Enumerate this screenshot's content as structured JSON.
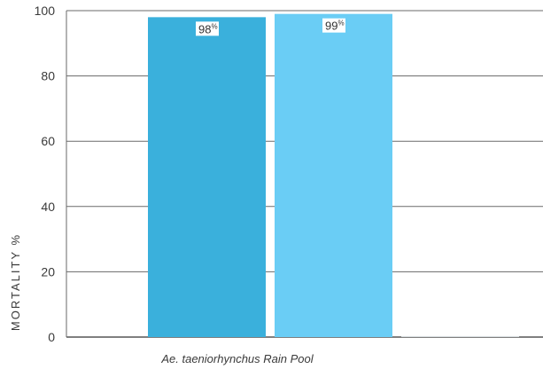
{
  "chart_data": {
    "type": "bar",
    "categories": [
      "Ae. taeniorhynchus Rain Pool"
    ],
    "series": [
      {
        "values": [
          98
        ],
        "color": "#3ab0dc"
      },
      {
        "values": [
          99
        ],
        "color": "#6acdf5"
      },
      {
        "values": [
          0.3
        ],
        "color": "#d8dde0"
      }
    ],
    "data_labels": [
      "98",
      "99",
      ""
    ],
    "data_label_unit": "%",
    "ylabel": "MORTALITY %",
    "xlabel": "",
    "ylim": [
      0,
      100
    ],
    "yticks": [
      0,
      20,
      40,
      60,
      80,
      100
    ],
    "grid": true,
    "legend": "none"
  }
}
